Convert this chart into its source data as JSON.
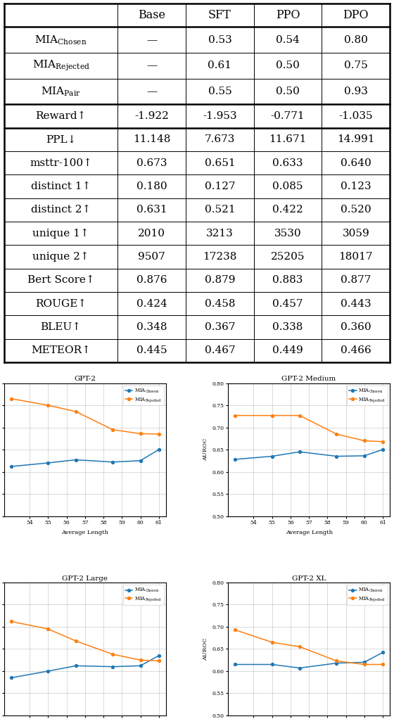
{
  "table": {
    "columns": [
      "",
      "Base",
      "SFT",
      "PPO",
      "DPO"
    ],
    "rows": [
      {
        "label_main": "MIA",
        "label_sub": "Chosen",
        "values": [
          "—",
          "0.53",
          "0.54",
          "0.80"
        ]
      },
      {
        "label_main": "MIA",
        "label_sub": "Rejected",
        "values": [
          "—",
          "0.61",
          "0.50",
          "0.75"
        ]
      },
      {
        "label_main": "MIA",
        "label_sub": "Pair",
        "values": [
          "—",
          "0.55",
          "0.50",
          "0.93"
        ]
      },
      {
        "label_main": "Reward↑",
        "label_sub": "",
        "values": [
          "-1.922",
          "-1.953",
          "-0.771",
          "-1.035"
        ]
      },
      {
        "label_main": "PPL↓",
        "label_sub": "",
        "values": [
          "11.148",
          "7.673",
          "11.671",
          "14.991"
        ]
      },
      {
        "label_main": "msttr-100↑",
        "label_sub": "",
        "values": [
          "0.673",
          "0.651",
          "0.633",
          "0.640"
        ]
      },
      {
        "label_main": "distinct 1↑",
        "label_sub": "",
        "values": [
          "0.180",
          "0.127",
          "0.085",
          "0.123"
        ]
      },
      {
        "label_main": "distinct 2↑",
        "label_sub": "",
        "values": [
          "0.631",
          "0.521",
          "0.422",
          "0.520"
        ]
      },
      {
        "label_main": "unique 1↑",
        "label_sub": "",
        "values": [
          "2010",
          "3213",
          "3530",
          "3059"
        ]
      },
      {
        "label_main": "unique 2↑",
        "label_sub": "",
        "values": [
          "9507",
          "17238",
          "25205",
          "18017"
        ]
      },
      {
        "label_main": "Bert Score↑",
        "label_sub": "",
        "values": [
          "0.876",
          "0.879",
          "0.883",
          "0.877"
        ]
      },
      {
        "label_main": "ROUGE↑",
        "label_sub": "",
        "values": [
          "0.424",
          "0.458",
          "0.457",
          "0.443"
        ]
      },
      {
        "label_main": "BLEU↑",
        "label_sub": "",
        "values": [
          "0.348",
          "0.367",
          "0.338",
          "0.360"
        ]
      },
      {
        "label_main": "METEOR↑",
        "label_sub": "",
        "values": [
          "0.445",
          "0.467",
          "0.449",
          "0.466"
        ]
      }
    ],
    "thick_border_after_data_rows": [
      2,
      3
    ]
  },
  "plots": {
    "x_values": [
      53.0,
      55.0,
      56.5,
      58.5,
      60.0,
      61.0
    ],
    "x_ticks": [
      54,
      55,
      56,
      57,
      58,
      59,
      60,
      61
    ],
    "x_label": "Average Length",
    "y_label": "AUROC",
    "y_lim": [
      0.5,
      0.8
    ],
    "y_ticks": [
      0.5,
      0.55,
      0.6,
      0.65,
      0.7,
      0.75,
      0.8
    ],
    "subplots": [
      {
        "title": "GPT-2",
        "chosen": [
          0.612,
          0.62,
          0.627,
          0.622,
          0.625,
          0.65
        ],
        "rejected": [
          0.765,
          0.75,
          0.736,
          0.695,
          0.686,
          0.685
        ]
      },
      {
        "title": "GPT-2 Medium",
        "chosen": [
          0.628,
          0.635,
          0.645,
          0.635,
          0.636,
          0.65
        ],
        "rejected": [
          0.727,
          0.727,
          0.727,
          0.685,
          0.67,
          0.668
        ]
      },
      {
        "title": "GPT-2 Large",
        "chosen": [
          0.585,
          0.6,
          0.612,
          0.61,
          0.612,
          0.635
        ],
        "rejected": [
          0.712,
          0.695,
          0.668,
          0.638,
          0.625,
          0.623
        ]
      },
      {
        "title": "GPT-2 XL",
        "chosen": [
          0.615,
          0.615,
          0.607,
          0.618,
          0.62,
          0.642
        ],
        "rejected": [
          0.693,
          0.665,
          0.655,
          0.623,
          0.615,
          0.615
        ]
      }
    ],
    "chosen_color": "#1f77b4",
    "rejected_color": "#ff7f0e"
  }
}
